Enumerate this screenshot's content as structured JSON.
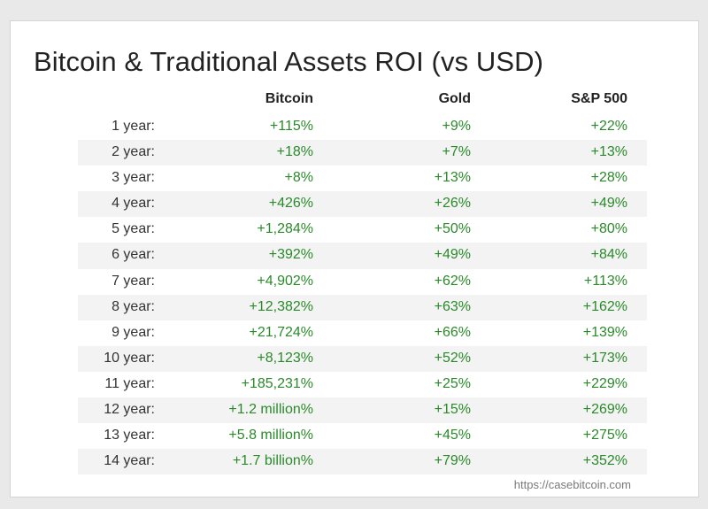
{
  "chart_data": {
    "type": "table",
    "title": "Bitcoin & Traditional Assets ROI (vs USD)",
    "columns": [
      "Bitcoin",
      "Gold",
      "S&P 500"
    ],
    "rows": [
      {
        "label": "1 year:",
        "values": [
          "+115%",
          "+9%",
          "+22%"
        ]
      },
      {
        "label": "2 year:",
        "values": [
          "+18%",
          "+7%",
          "+13%"
        ]
      },
      {
        "label": "3 year:",
        "values": [
          "+8%",
          "+13%",
          "+28%"
        ]
      },
      {
        "label": "4 year:",
        "values": [
          "+426%",
          "+26%",
          "+49%"
        ]
      },
      {
        "label": "5 year:",
        "values": [
          "+1,284%",
          "+50%",
          "+80%"
        ]
      },
      {
        "label": "6 year:",
        "values": [
          "+392%",
          "+49%",
          "+84%"
        ]
      },
      {
        "label": "7 year:",
        "values": [
          "+4,902%",
          "+62%",
          "+113%"
        ]
      },
      {
        "label": "8 year:",
        "values": [
          "+12,382%",
          "+63%",
          "+162%"
        ]
      },
      {
        "label": "9 year:",
        "values": [
          "+21,724%",
          "+66%",
          "+139%"
        ]
      },
      {
        "label": "10 year:",
        "values": [
          "+8,123%",
          "+52%",
          "+173%"
        ]
      },
      {
        "label": "11 year:",
        "values": [
          "+185,231%",
          "+25%",
          "+229%"
        ]
      },
      {
        "label": "12 year:",
        "values": [
          "+1.2 million%",
          "+15%",
          "+269%"
        ]
      },
      {
        "label": "13 year:",
        "values": [
          "+5.8 million%",
          "+45%",
          "+275%"
        ]
      },
      {
        "label": "14 year:",
        "values": [
          "+1.7 billion%",
          "+79%",
          "+352%"
        ]
      }
    ],
    "value_color": "#2a8a2a",
    "source": "https://casebitcoin.com"
  }
}
